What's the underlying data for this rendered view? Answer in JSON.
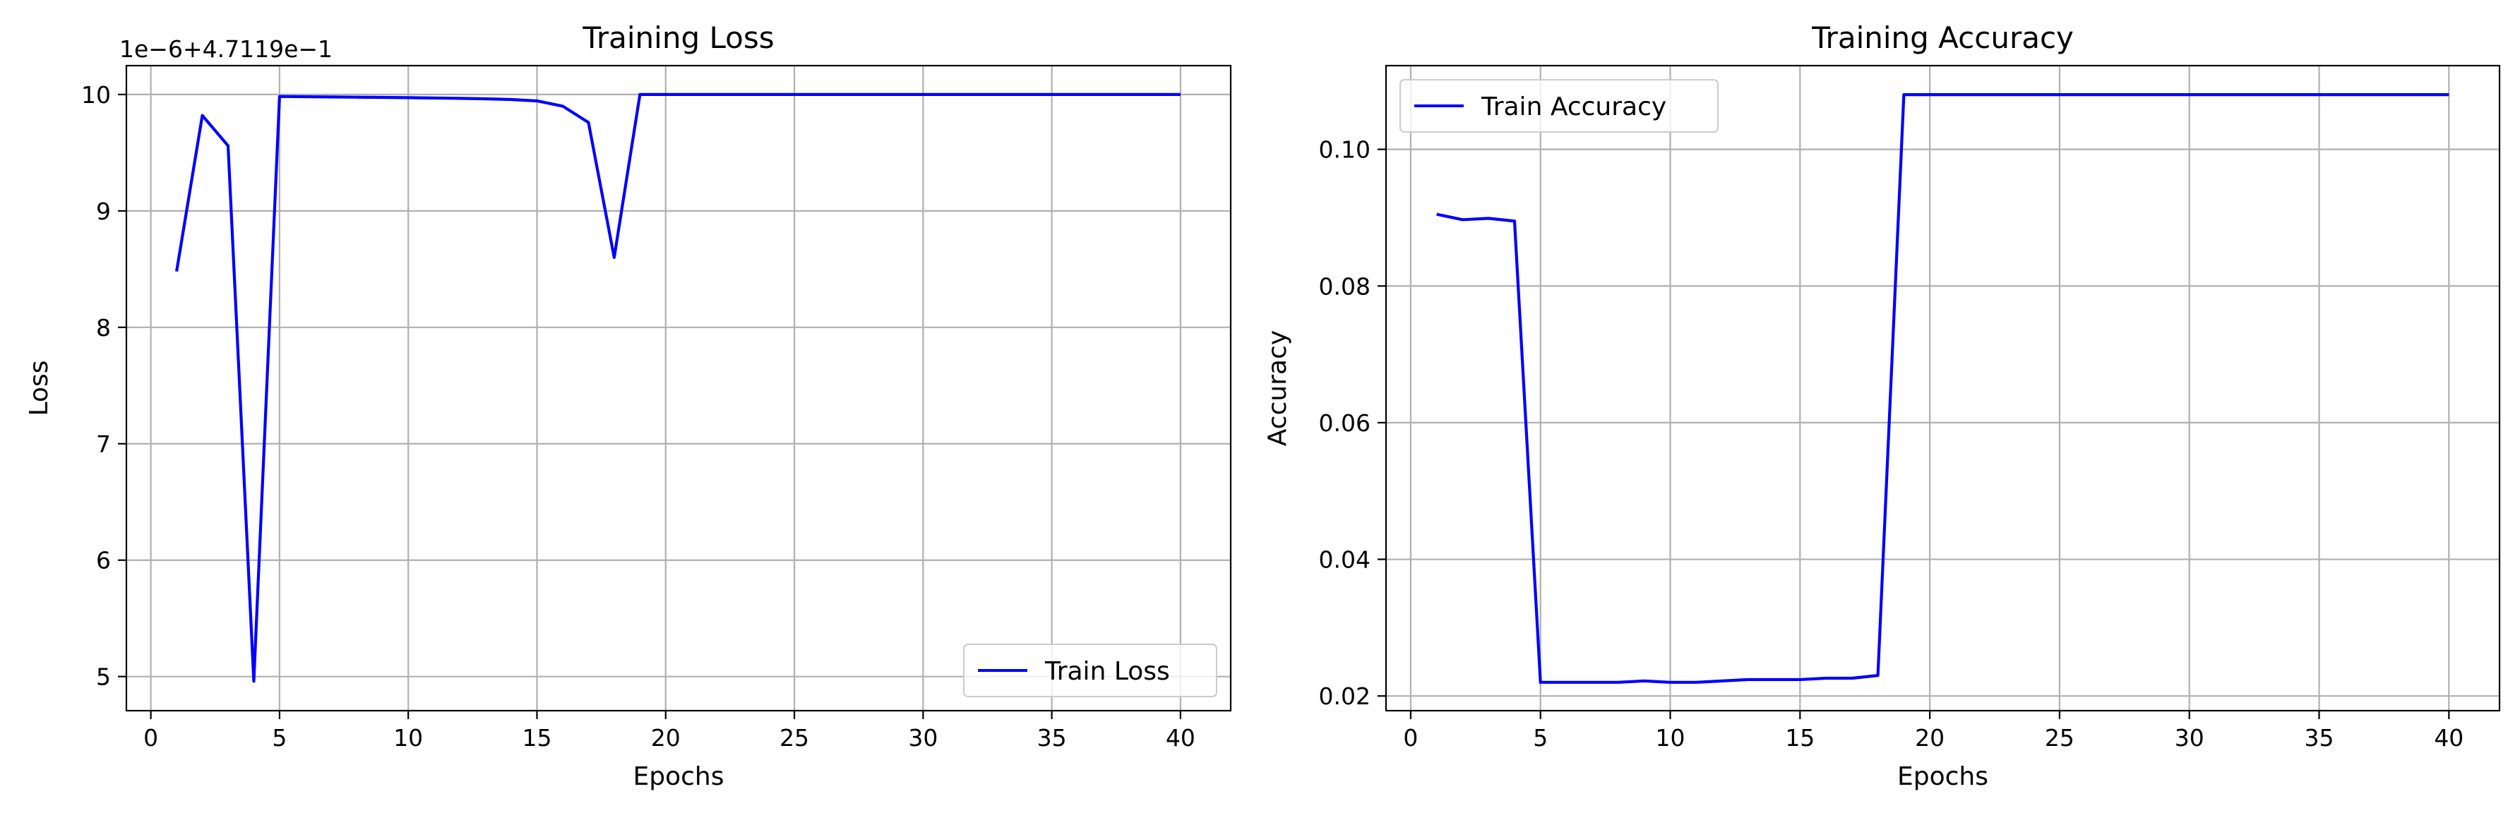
{
  "chart_data": [
    {
      "type": "line",
      "title": "Training Loss",
      "xlabel": "Epochs",
      "ylabel": "Loss",
      "offset_label": "1e−6+4.7119e−1",
      "xlim": [
        -0.95,
        41.95
      ],
      "ylim": [
        0.471194707,
        0.471200248
      ],
      "xticks": [
        0,
        5,
        10,
        15,
        20,
        25,
        30,
        35,
        40
      ],
      "xtick_labels": [
        "0",
        "5",
        "10",
        "15",
        "20",
        "25",
        "30",
        "35",
        "40"
      ],
      "yticks": [
        0.471195,
        0.471196,
        0.471197,
        0.471198,
        0.471199,
        0.4712
      ],
      "ytick_labels": [
        "5",
        "6",
        "7",
        "8",
        "9",
        "10"
      ],
      "grid": true,
      "legend_position": "lower-right",
      "line_color": "#0000ff",
      "series": [
        {
          "name": "Train Loss",
          "x": [
            1,
            2,
            3,
            4,
            5,
            6,
            7,
            8,
            9,
            10,
            11,
            12,
            13,
            14,
            15,
            16,
            17,
            18,
            19,
            20,
            21,
            22,
            23,
            24,
            25,
            26,
            27,
            28,
            29,
            30,
            31,
            32,
            33,
            34,
            35,
            36,
            37,
            38,
            39,
            40
          ],
          "y": [
            0.47119848,
            0.47119982,
            0.47119956,
            0.47119496,
            0.471199983,
            0.471199981,
            0.471199979,
            0.471199977,
            0.471199975,
            0.471199973,
            0.47119997,
            0.471199967,
            0.471199963,
            0.471199957,
            0.471199945,
            0.4711999,
            0.47119976,
            0.4711986,
            0.4712,
            0.4712,
            0.4712,
            0.4712,
            0.4712,
            0.4712,
            0.4712,
            0.4712,
            0.4712,
            0.4712,
            0.4712,
            0.4712,
            0.4712,
            0.4712,
            0.4712,
            0.4712,
            0.4712,
            0.4712,
            0.4712,
            0.4712,
            0.4712,
            0.4712
          ]
        }
      ]
    },
    {
      "type": "line",
      "title": "Training Accuracy",
      "xlabel": "Epochs",
      "ylabel": "Accuracy",
      "xlim": [
        -0.95,
        41.95
      ],
      "ylim": [
        0.01785,
        0.11225
      ],
      "xticks": [
        0,
        5,
        10,
        15,
        20,
        25,
        30,
        35,
        40
      ],
      "xtick_labels": [
        "0",
        "5",
        "10",
        "15",
        "20",
        "25",
        "30",
        "35",
        "40"
      ],
      "yticks": [
        0.02,
        0.04,
        0.06,
        0.08,
        0.1
      ],
      "ytick_labels": [
        "0.02",
        "0.04",
        "0.06",
        "0.08",
        "0.10"
      ],
      "grid": true,
      "legend_position": "upper-left",
      "line_color": "#0000ff",
      "series": [
        {
          "name": "Train Accuracy",
          "x": [
            1,
            2,
            3,
            4,
            5,
            6,
            7,
            8,
            9,
            10,
            11,
            12,
            13,
            14,
            15,
            16,
            17,
            18,
            19,
            20,
            21,
            22,
            23,
            24,
            25,
            26,
            27,
            28,
            29,
            30,
            31,
            32,
            33,
            34,
            35,
            36,
            37,
            38,
            39,
            40
          ],
          "y": [
            0.0905,
            0.0897,
            0.0899,
            0.0895,
            0.022,
            0.022,
            0.022,
            0.022,
            0.0222,
            0.022,
            0.022,
            0.0222,
            0.0224,
            0.0224,
            0.0224,
            0.0226,
            0.0226,
            0.023,
            0.108,
            0.108,
            0.108,
            0.108,
            0.108,
            0.108,
            0.108,
            0.108,
            0.108,
            0.108,
            0.108,
            0.108,
            0.108,
            0.108,
            0.108,
            0.108,
            0.108,
            0.108,
            0.108,
            0.108,
            0.108,
            0.108
          ]
        }
      ]
    }
  ]
}
